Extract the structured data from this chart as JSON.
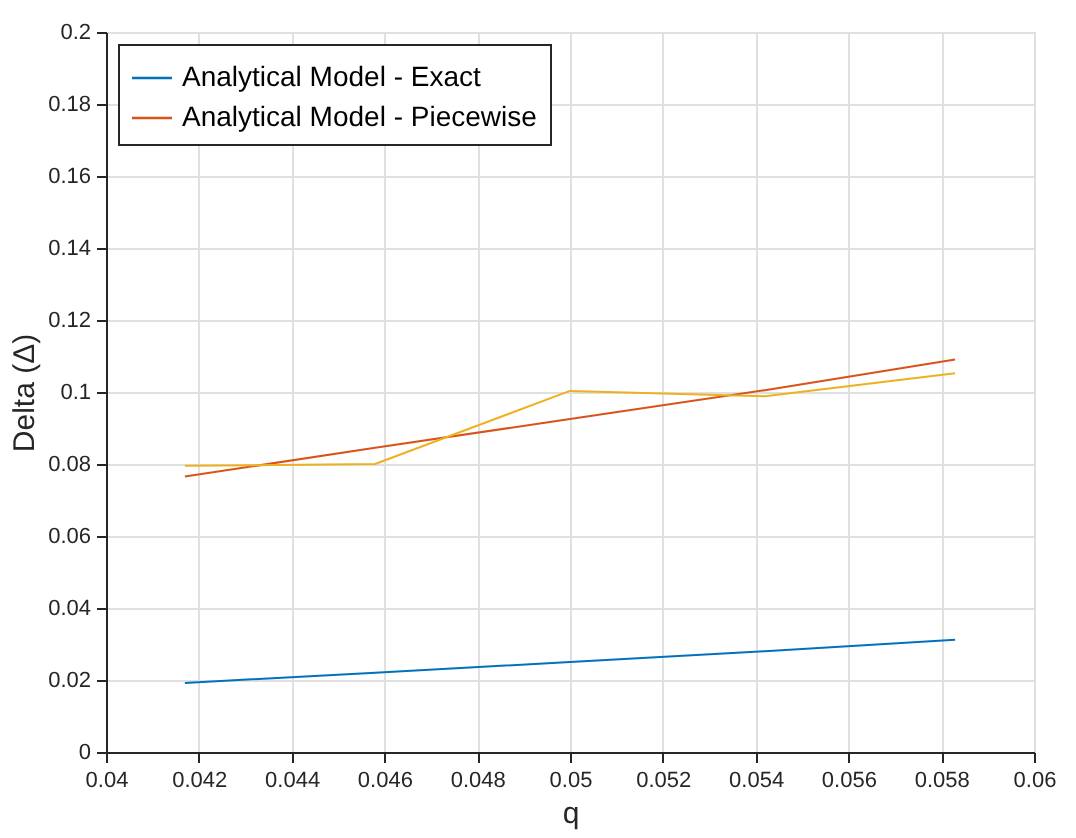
{
  "chart_data": {
    "type": "line",
    "xlabel": "q",
    "ylabel": "Delta (Δ)",
    "x": [
      0.0417,
      0.0458,
      0.05,
      0.0542,
      0.0583
    ],
    "series": [
      {
        "name": "Analytical Model - Exact",
        "color": "#0072bd",
        "values": [
          0.0192,
          0.022,
          0.025,
          0.028,
          0.0312
        ]
      },
      {
        "name": "Analytical Model - Piecewise",
        "color": "#d95319",
        "values": [
          0.0765,
          0.0845,
          0.0925,
          0.1005,
          0.109
        ]
      },
      {
        "color": "#edb120",
        "values": [
          0.0795,
          0.08,
          0.1003,
          0.0988,
          0.1052
        ]
      }
    ],
    "xlim": [
      0.04,
      0.06
    ],
    "xticks": [
      0.04,
      0.042,
      0.044,
      0.046,
      0.048,
      0.05,
      0.052,
      0.054,
      0.056,
      0.058,
      0.06
    ],
    "ylim": [
      0,
      0.2
    ],
    "yticks": [
      0,
      0.02,
      0.04,
      0.06,
      0.08,
      0.1,
      0.12,
      0.14,
      0.16,
      0.18,
      0.2
    ],
    "grid": true,
    "legend": "top left",
    "marker": "none",
    "line_style": "solid"
  }
}
